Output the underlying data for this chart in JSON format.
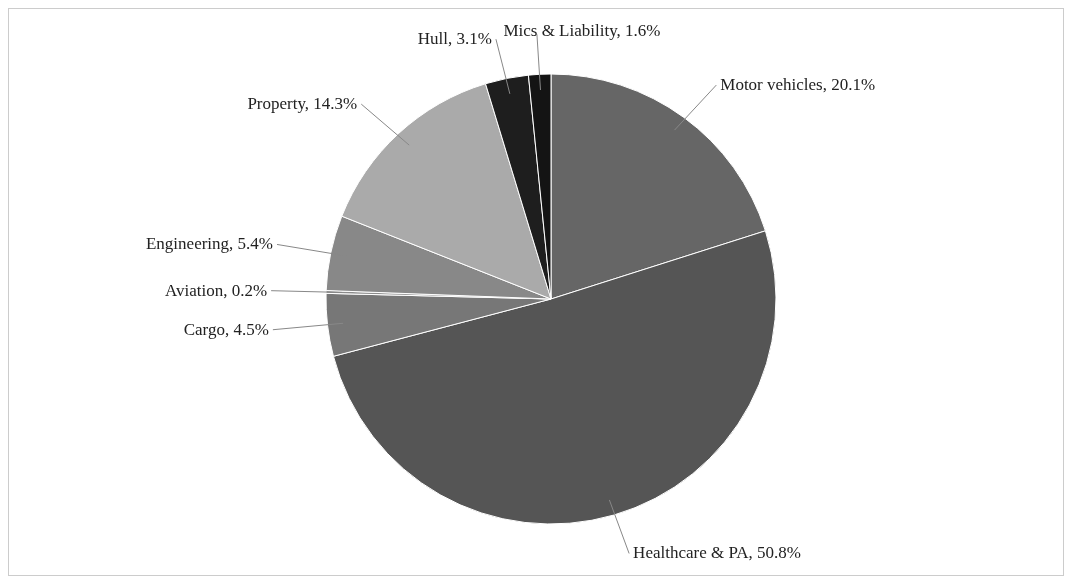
{
  "chart_data": {
    "type": "pie",
    "categories": [
      "Motor vehicles",
      "Healthcare & PA",
      "Cargo",
      "Aviation",
      "Engineering",
      "Property",
      "Hull",
      "Mics & Liability"
    ],
    "values": [
      20.1,
      50.8,
      4.5,
      0.2,
      5.4,
      14.3,
      3.1,
      1.6
    ],
    "value_labels": [
      "20.1%",
      "50.8%",
      "4.5%",
      "0.2%",
      "5.4%",
      "14.3%",
      "3.1%",
      "1.6%"
    ],
    "colors": [
      "#666666",
      "#555555",
      "#777777",
      "#8c8c8c",
      "#888888",
      "#aaaaaa",
      "#1e1e1e",
      "#141414"
    ]
  }
}
